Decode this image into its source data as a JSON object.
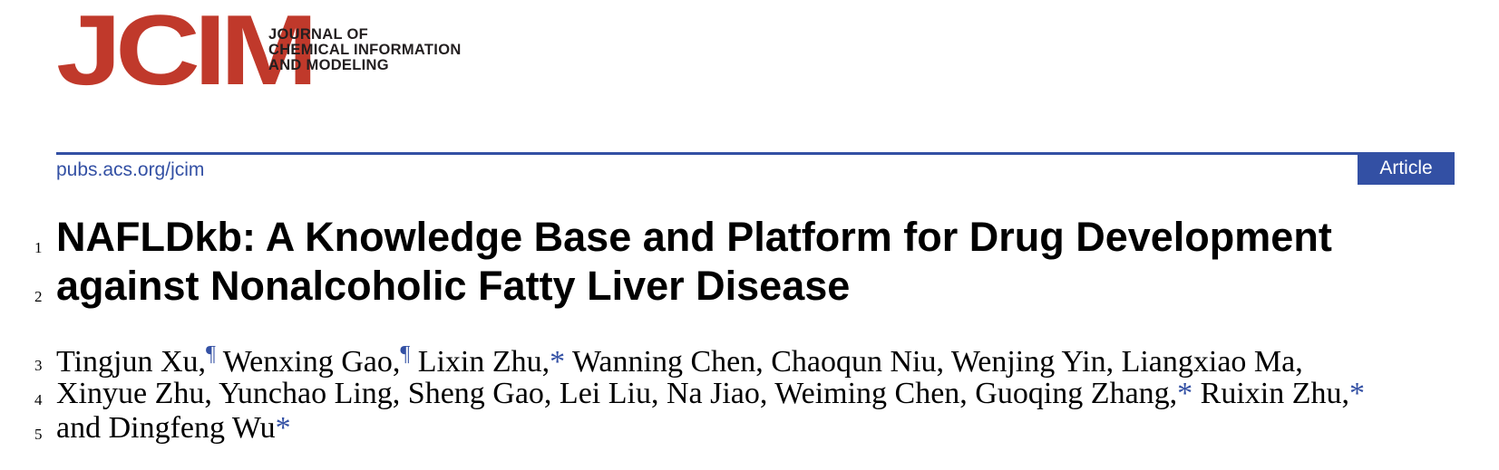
{
  "header": {
    "logo_text": "JCIM",
    "journal_name_lines": [
      "JOURNAL OF",
      "CHEMICAL INFORMATION",
      "AND MODELING"
    ],
    "url": "pubs.acs.org/jcim",
    "article_type": "Article"
  },
  "title": {
    "line_numbers": [
      "1",
      "2"
    ],
    "lines": [
      "NAFLDkb: A Knowledge Base and Platform for Drug Development",
      "against Nonalcoholic Fatty Liver Disease"
    ]
  },
  "authors": {
    "line_numbers": [
      "3",
      "4",
      "5"
    ],
    "line1": {
      "a1": "Tingjun Xu,",
      "m1": "¶",
      "a2": " Wenxing Gao,",
      "m2": "¶",
      "a3": " Lixin Zhu,",
      "m3": "*",
      "rest": " Wanning Chen, Chaoqun Niu, Wenjing Yin, Liangxiao Ma,"
    },
    "line2": {
      "a1": "Xinyue Zhu, Yunchao Ling, Sheng Gao, Lei Liu, Na Jiao, Weiming Chen, Guoqing Zhang,",
      "m1": "*",
      "a2": " Ruixin Zhu,",
      "m2": "*"
    },
    "line3": {
      "a1": "and Dingfeng Wu",
      "m1": "*"
    }
  },
  "colors": {
    "brand_red": "#c0392b",
    "accent_blue": "#3350a4"
  }
}
